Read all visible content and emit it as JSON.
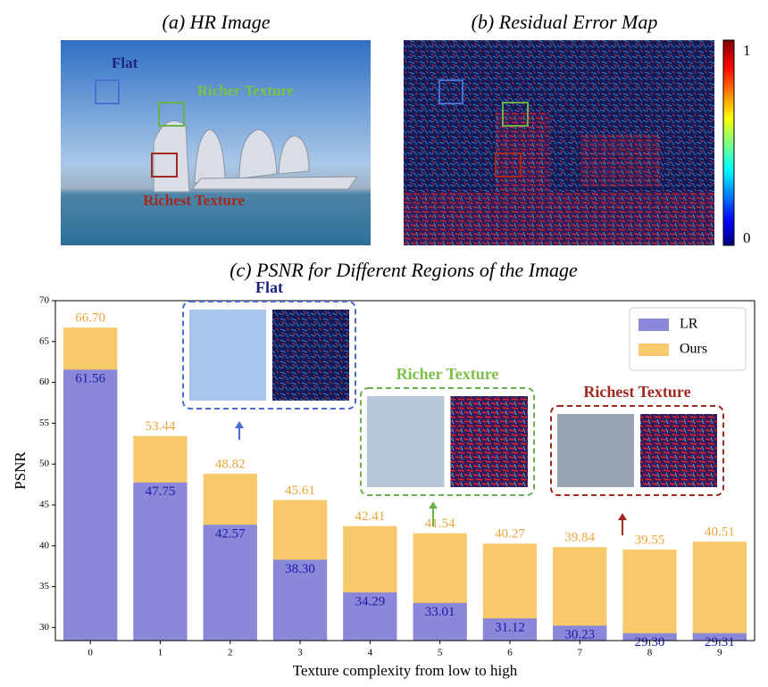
{
  "panels": {
    "a_title": "(a) HR Image",
    "b_title": "(b) Residual Error Map",
    "a_labels": [
      "Flat",
      "Richer Texture",
      "Richest Texture"
    ],
    "colorbar_ticks": [
      1,
      0
    ]
  },
  "chart_data": {
    "type": "bar",
    "title": "(c) PSNR for Different Regions of the Image",
    "x_label": "Texture complexity from low to high",
    "y_label": "PSNR",
    "categories": [
      "0",
      "1",
      "2",
      "3",
      "4",
      "5",
      "6",
      "7",
      "8",
      "9"
    ],
    "series": [
      {
        "name": "LR",
        "color": "#8b88d9",
        "label_color": "#1c1ca8",
        "values": [
          61.56,
          47.75,
          42.57,
          38.3,
          34.29,
          33.01,
          31.12,
          30.23,
          29.3,
          29.31
        ],
        "value_labels": [
          "61.56",
          "47.75",
          "42.57",
          "38.30",
          "34.29",
          "33.01",
          "31.12",
          "30.23",
          "29.30",
          "29.31"
        ]
      },
      {
        "name": "Ours",
        "color": "#f8c96a",
        "label_color": "#eca43a",
        "values": [
          66.7,
          53.44,
          48.82,
          45.61,
          42.41,
          41.54,
          40.27,
          39.84,
          39.55,
          40.51
        ],
        "value_labels": [
          "66.70",
          "53.44",
          "48.82",
          "45.61",
          "42.41",
          "41.54",
          "40.27",
          "39.84",
          "39.55",
          "40.51"
        ]
      }
    ],
    "ylim": [
      28.4,
      70
    ],
    "yticks": [
      30,
      35,
      40,
      45,
      50,
      55,
      60,
      65,
      70
    ],
    "legend": "upper right",
    "annotations": [
      "Flat",
      "Richer Texture",
      "Richest Texture"
    ]
  }
}
